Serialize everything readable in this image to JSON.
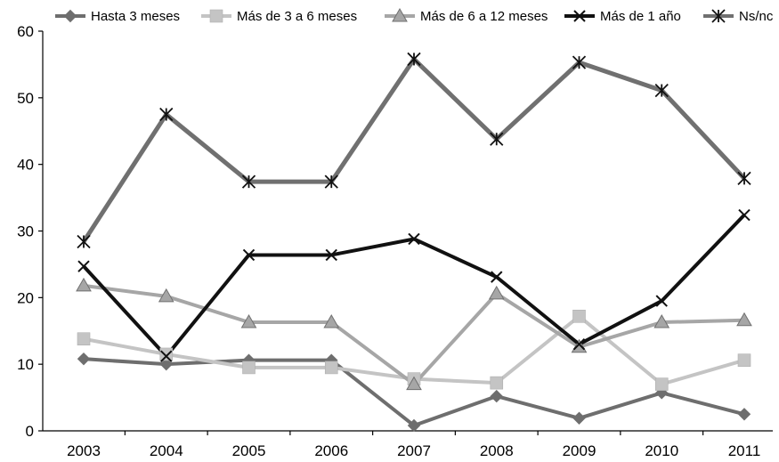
{
  "chart_data": {
    "type": "line",
    "title": "",
    "xlabel": "",
    "ylabel": "",
    "categories": [
      "2003",
      "2004",
      "2005",
      "2006",
      "2007",
      "2008",
      "2009",
      "2010",
      "2011"
    ],
    "ylim": [
      0,
      60
    ],
    "yticks": [
      "0",
      "10",
      "20",
      "30",
      "40",
      "50",
      "60"
    ],
    "grid": false,
    "legend_position": "top",
    "series": [
      {
        "name": "Hasta 3 meses",
        "color": "#6e6e6e",
        "marker": "diamond",
        "values": [
          10.8,
          10.0,
          10.6,
          10.6,
          0.8,
          5.2,
          1.9,
          5.7,
          2.5
        ]
      },
      {
        "name": "Más de 3 a 6 meses",
        "color": "#c4c4c4",
        "marker": "square",
        "values": [
          13.8,
          11.5,
          9.5,
          9.5,
          7.8,
          7.2,
          17.2,
          7.0,
          10.6
        ]
      },
      {
        "name": "Más de 6 a 12 meses",
        "color": "#a6a6a6",
        "marker": "triangle",
        "values": [
          21.8,
          20.2,
          16.3,
          16.3,
          7.0,
          20.6,
          12.6,
          16.3,
          16.6
        ]
      },
      {
        "name": "Más de 1 año",
        "color": "#111111",
        "marker": "x",
        "values": [
          24.7,
          11.2,
          26.4,
          26.4,
          28.8,
          23.1,
          13.0,
          19.5,
          32.4
        ]
      },
      {
        "name": "Ns/nc",
        "color": "#707070",
        "marker": "star",
        "values": [
          28.4,
          47.5,
          37.4,
          37.4,
          55.8,
          43.8,
          55.3,
          51.1,
          37.9
        ]
      }
    ]
  }
}
